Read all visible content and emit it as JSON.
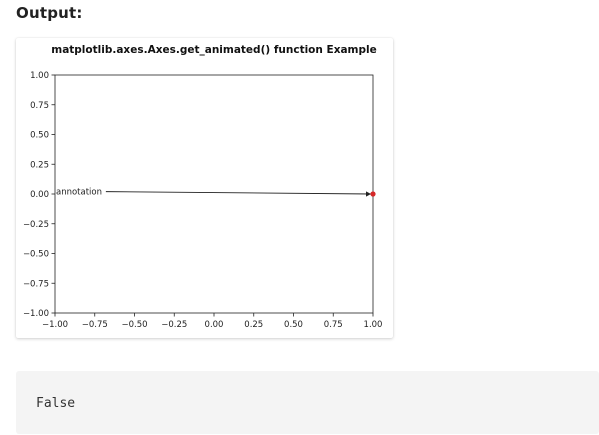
{
  "heading": "Output:",
  "chart_data": {
    "type": "line",
    "title": "matplotlib.axes.Axes.get_animated() function Example",
    "xlabel": "",
    "ylabel": "",
    "xlim": [
      -1.0,
      1.0
    ],
    "ylim": [
      -1.0,
      1.0
    ],
    "x_ticks": [
      "−1.00",
      "−0.75",
      "−0.50",
      "−0.25",
      "0.00",
      "0.25",
      "0.50",
      "0.75",
      "1.00"
    ],
    "y_ticks": [
      "1.00",
      "0.75",
      "0.50",
      "0.25",
      "0.00",
      "−0.25",
      "−0.50",
      "−0.75",
      "−1.00"
    ],
    "x_tick_values": [
      -1.0,
      -0.75,
      -0.5,
      -0.25,
      0.0,
      0.25,
      0.5,
      0.75,
      1.0
    ],
    "y_tick_values": [
      1.0,
      0.75,
      0.5,
      0.25,
      0.0,
      -0.25,
      -0.5,
      -0.75,
      -1.0
    ],
    "grid": false,
    "point": {
      "x": 1.0,
      "y": 0.0,
      "color": "#d62728"
    },
    "annotation": {
      "text": "annotation",
      "text_xy": [
        -1.0,
        0.02
      ],
      "arrow_from": [
        -0.68,
        0.02
      ],
      "arrow_to": [
        1.0,
        0.0
      ]
    }
  },
  "output": {
    "text": "False"
  }
}
